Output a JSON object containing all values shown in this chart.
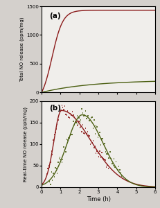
{
  "fig_width": 2.31,
  "fig_height": 3.0,
  "dpi": 100,
  "bg_color": "#d4d0cc",
  "panel_bg": "#f0eeeb",
  "panel_a": {
    "label": "(a)",
    "ylabel": "Total NO release (ppm/mg)",
    "ylim": [
      0,
      1500
    ],
    "yticks": [
      0,
      500,
      1000,
      1500
    ],
    "xlim": [
      0,
      6
    ],
    "red_params": {
      "k": 3.5,
      "A": 1430,
      "t0": 0.55,
      "color": "#8b1a1a"
    },
    "green_params": {
      "k": 0.38,
      "A": 215,
      "t0": 0.0,
      "color": "#4a5e10"
    }
  },
  "panel_b": {
    "label": "(b)",
    "ylabel": "Real-time NO release (ppb/mg)",
    "xlabel": "Time (h)",
    "ylim": [
      0,
      200
    ],
    "yticks": [
      0,
      50,
      100,
      150,
      200
    ],
    "xlim": [
      0,
      6
    ],
    "red_smooth_params": {
      "peak": 178,
      "t_peak": 1.05,
      "sigma_l": 0.4,
      "sigma_r": 1.55,
      "color": "#8b1a1a"
    },
    "green_smooth_params": {
      "peak": 168,
      "t_peak": 2.15,
      "sigma_l": 0.8,
      "sigma_r": 1.1,
      "color": "#4a5e10"
    }
  }
}
